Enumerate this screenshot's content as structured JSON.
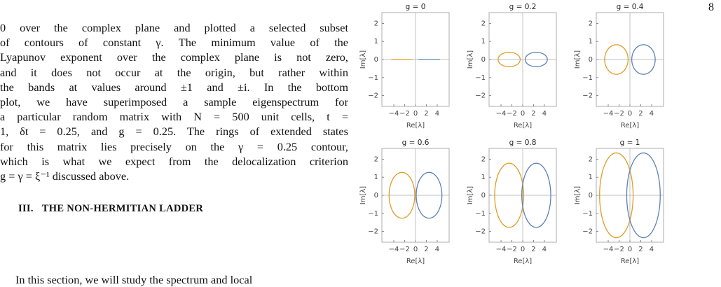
{
  "page_number": "8",
  "body": {
    "lines": [
      "0 over the complex plane and plotted a selected subset",
      "of contours of constant γ. The minimum value of the",
      "Lyapunov exponent over the complex plane is not zero,",
      "and it does not occur at the origin, but rather within",
      "the bands at values around ±1 and ±i. In the bottom",
      "plot, we have superimposed a sample eigenspectrum for",
      "a particular random matrix with N = 500 unit cells, t =",
      "1, δt = 0.25, and g = 0.25. The rings of extended states",
      "for this matrix lies precisely on the γ = 0.25 contour,",
      "which is what we expect from the delocalization criterion",
      "g = γ = ξ⁻¹ discussed above."
    ],
    "heading": {
      "number": "III.",
      "title": "THE NON-HERMITIAN LADDER"
    },
    "next_line": "In this section, we will study the spectrum and local"
  },
  "figure": {
    "xlabel": "Re[λ]",
    "ylabel": "Im[λ]",
    "xlim": [
      -6.2,
      6.2
    ],
    "ylim": [
      -2.6,
      2.6
    ],
    "xticks": [
      {
        "value": -4,
        "label": "−4"
      },
      {
        "value": -2,
        "label": "−2"
      },
      0,
      2,
      4
    ],
    "yticks": [
      {
        "value": -2,
        "label": "−2"
      },
      {
        "value": -1,
        "label": "−1"
      },
      0,
      1,
      2
    ],
    "panels": [
      {
        "title": "g = 0",
        "curves": [
          {
            "color": "#e19c24",
            "cx": -2.5,
            "rx": 2,
            "ry": 0
          },
          {
            "color": "#5e81b5",
            "cx": 2.5,
            "rx": 2,
            "ry": 0
          }
        ]
      },
      {
        "title": "g = 0.2",
        "curves": [
          {
            "color": "#e19c24",
            "cx": -2.5,
            "rx": 2.04,
            "ry": 0.4
          },
          {
            "color": "#5e81b5",
            "cx": 2.5,
            "rx": 2.04,
            "ry": 0.4
          }
        ]
      },
      {
        "title": "g = 0.4",
        "curves": [
          {
            "color": "#e19c24",
            "cx": -2.5,
            "rx": 2.16,
            "ry": 0.82
          },
          {
            "color": "#5e81b5",
            "cx": 2.5,
            "rx": 2.16,
            "ry": 0.82
          }
        ]
      },
      {
        "title": "g = 0.6",
        "curves": [
          {
            "color": "#e19c24",
            "cx": -2.5,
            "rx": 2.37,
            "ry": 1.27
          },
          {
            "color": "#5e81b5",
            "cx": 2.5,
            "rx": 2.37,
            "ry": 1.27
          }
        ]
      },
      {
        "title": "g = 0.8",
        "curves": [
          {
            "color": "#e19c24",
            "cx": -2.5,
            "rx": 2.67,
            "ry": 1.78
          },
          {
            "color": "#5e81b5",
            "cx": 2.5,
            "rx": 2.67,
            "ry": 1.78
          }
        ]
      },
      {
        "title": "g = 1",
        "curves": [
          {
            "color": "#e19c24",
            "cx": -2.5,
            "rx": 3.09,
            "ry": 2.35
          },
          {
            "color": "#5e81b5",
            "cx": 2.5,
            "rx": 3.09,
            "ry": 2.35
          }
        ]
      }
    ]
  }
}
